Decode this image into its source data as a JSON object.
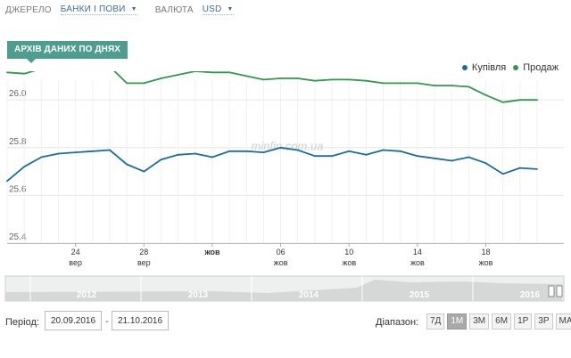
{
  "header": {
    "source_label": "ДЖЕРЕЛО",
    "source_value": "БАНКИ І ПОВИ",
    "currency_label": "ВАЛЮТА",
    "currency_value": "USD"
  },
  "title_tag": "АРХІВ ДАНИХ ПО ДНЯХ",
  "watermark": "minfin.com.ua",
  "colors": {
    "buy": "#1a6e9e",
    "sell": "#2e9a4a",
    "tag": "#4e9e8f"
  },
  "chart_data": {
    "type": "line",
    "title": "АРХІВ ДАНИХ ПО ДНЯХ",
    "xlabel": "",
    "ylabel": "",
    "ylim": [
      25.4,
      26.12
    ],
    "y_ticks": [
      "25.4",
      "25.6",
      "25.8",
      "26.0"
    ],
    "x_labels": [
      {
        "date": "2016-09-24",
        "day": "24",
        "month": "вер"
      },
      {
        "date": "2016-09-28",
        "day": "28",
        "month": "вер"
      },
      {
        "date": "2016-10-02",
        "day": "",
        "month": "жов",
        "bold": true
      },
      {
        "date": "2016-10-06",
        "day": "06",
        "month": "жов"
      },
      {
        "date": "2016-10-10",
        "day": "10",
        "month": "жов"
      },
      {
        "date": "2016-10-14",
        "day": "14",
        "month": "жов"
      },
      {
        "date": "2016-10-18",
        "day": "18",
        "month": "жов"
      }
    ],
    "x_range": [
      "2016-09-20",
      "2016-10-21"
    ],
    "grid": true,
    "legend_position": "top-right",
    "series": [
      {
        "name": "Купівля",
        "color": "#1a6e9e",
        "points": [
          [
            "2016-09-20",
            25.66
          ],
          [
            "2016-09-21",
            25.72
          ],
          [
            "2016-09-22",
            25.76
          ],
          [
            "2016-09-23",
            25.775
          ],
          [
            "2016-09-24",
            25.78
          ],
          [
            "2016-09-25",
            25.785
          ],
          [
            "2016-09-26",
            25.79
          ],
          [
            "2016-09-27",
            25.73
          ],
          [
            "2016-09-28",
            25.7
          ],
          [
            "2016-09-29",
            25.75
          ],
          [
            "2016-09-30",
            25.77
          ],
          [
            "2016-10-01",
            25.775
          ],
          [
            "2016-10-02",
            25.76
          ],
          [
            "2016-10-03",
            25.785
          ],
          [
            "2016-10-04",
            25.785
          ],
          [
            "2016-10-05",
            25.78
          ],
          [
            "2016-10-06",
            25.8
          ],
          [
            "2016-10-07",
            25.79
          ],
          [
            "2016-10-08",
            25.765
          ],
          [
            "2016-10-09",
            25.765
          ],
          [
            "2016-10-10",
            25.785
          ],
          [
            "2016-10-11",
            25.77
          ],
          [
            "2016-10-12",
            25.79
          ],
          [
            "2016-10-13",
            25.785
          ],
          [
            "2016-10-14",
            25.765
          ],
          [
            "2016-10-15",
            25.755
          ],
          [
            "2016-10-16",
            25.745
          ],
          [
            "2016-10-17",
            25.76
          ],
          [
            "2016-10-18",
            25.735
          ],
          [
            "2016-10-19",
            25.69
          ],
          [
            "2016-10-20",
            25.715
          ],
          [
            "2016-10-21",
            25.71
          ]
        ]
      },
      {
        "name": "Продаж",
        "color": "#2e9a4a",
        "points": [
          [
            "2016-09-20",
            26.115
          ],
          [
            "2016-09-21",
            26.11
          ],
          [
            "2016-09-22",
            26.13
          ],
          [
            "2016-09-23",
            26.135
          ],
          [
            "2016-09-24",
            26.14
          ],
          [
            "2016-09-25",
            26.145
          ],
          [
            "2016-09-26",
            26.14
          ],
          [
            "2016-09-27",
            26.07
          ],
          [
            "2016-09-28",
            26.07
          ],
          [
            "2016-09-29",
            26.09
          ],
          [
            "2016-09-30",
            26.105
          ],
          [
            "2016-10-01",
            26.12
          ],
          [
            "2016-10-02",
            26.115
          ],
          [
            "2016-10-03",
            26.115
          ],
          [
            "2016-10-04",
            26.1
          ],
          [
            "2016-10-05",
            26.085
          ],
          [
            "2016-10-06",
            26.09
          ],
          [
            "2016-10-07",
            26.09
          ],
          [
            "2016-10-08",
            26.08
          ],
          [
            "2016-10-09",
            26.085
          ],
          [
            "2016-10-10",
            26.085
          ],
          [
            "2016-10-11",
            26.08
          ],
          [
            "2016-10-12",
            26.07
          ],
          [
            "2016-10-13",
            26.07
          ],
          [
            "2016-10-14",
            26.07
          ],
          [
            "2016-10-15",
            26.06
          ],
          [
            "2016-10-16",
            26.06
          ],
          [
            "2016-10-17",
            26.055
          ],
          [
            "2016-10-18",
            26.02
          ],
          [
            "2016-10-19",
            25.99
          ],
          [
            "2016-10-20",
            26.0
          ],
          [
            "2016-10-21",
            26.0
          ]
        ]
      }
    ]
  },
  "navigator": {
    "years": [
      "2012",
      "2013",
      "2014",
      "2015",
      "2016"
    ],
    "handle_label": "||"
  },
  "footer": {
    "period_label": "Період:",
    "date_from": "20.09.2016",
    "date_sep": "-",
    "date_to": "21.10.2016",
    "range_label": "Діапазон:",
    "range_buttons": [
      "7Д",
      "1М",
      "3М",
      "6М",
      "1Р",
      "3Р",
      "MAX"
    ],
    "range_active": "1М"
  }
}
